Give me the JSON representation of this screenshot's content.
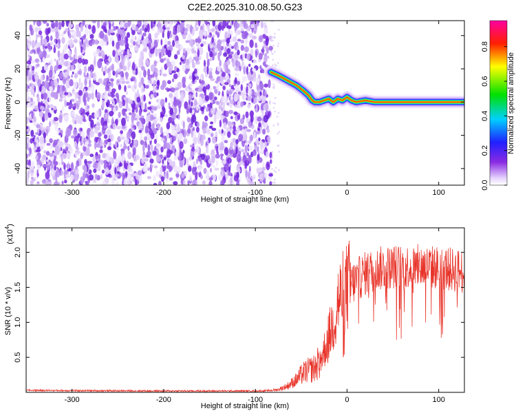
{
  "title": "C2E2.2025.310.08.50.G23",
  "colors": {
    "snr_line": "#e8342a",
    "frame": "#000000",
    "noise_light": "#d9c4f5",
    "noise_dark": "#7a2be0"
  },
  "chart_data": [
    {
      "type": "heatmap",
      "xlabel": "Height of straight line (km)",
      "ylabel": "Frequency (Hz)",
      "xlim": [
        -350,
        128
      ],
      "ylim": [
        -50,
        49
      ],
      "xticks": [
        -300,
        -200,
        -100,
        0,
        100
      ],
      "yticks": [
        -40,
        -20,
        0,
        20,
        40
      ],
      "colorbar": {
        "label": "Normalized spectral amplitude",
        "range": [
          0,
          0.95
        ],
        "ticks": [
          0.0,
          0.2,
          0.4,
          0.6,
          0.8
        ],
        "colormap": "rainbow: purple-blue-cyan-green-yellow-red-magenta"
      },
      "noise_region_x": [
        -350,
        -83
      ],
      "signal_trace": {
        "x": [
          -83,
          -75,
          -65,
          -55,
          -48,
          -42,
          -38,
          -35,
          -30,
          -25,
          -20,
          -15,
          -10,
          -5,
          0,
          5,
          10,
          20,
          30,
          40,
          60,
          80,
          100,
          128
        ],
        "freq": [
          18,
          16,
          13,
          10,
          7,
          4,
          1,
          0,
          0,
          1,
          2,
          0,
          2,
          1,
          3,
          1,
          0,
          1,
          0,
          0,
          0,
          0,
          0,
          0
        ]
      }
    },
    {
      "type": "line",
      "xlabel": "Height of straight line (km)",
      "ylabel": "SNR (10 * v/v)",
      "y_multiplier_label": "(x10",
      "y_multiplier_exp": "4",
      "xlim": [
        -350,
        128
      ],
      "ylim": [
        0,
        23500
      ],
      "xticks": [
        -300,
        -200,
        -100,
        0,
        100
      ],
      "yticks": [
        5000,
        10000,
        15000,
        20000
      ],
      "ytick_labels": [
        "0.5",
        "1.0",
        "1.5",
        "2.0"
      ],
      "series": [
        {
          "x": [
            -350,
            -300,
            -200,
            -100,
            -85,
            -75,
            -65,
            -55,
            -50,
            -45,
            -40,
            -35,
            -30,
            -25,
            -20,
            -15,
            -10,
            -5,
            0,
            10,
            20,
            30,
            40,
            60,
            80,
            100,
            110,
            120,
            128
          ],
          "values": [
            300,
            250,
            200,
            200,
            250,
            400,
            900,
            1800,
            2500,
            3000,
            3200,
            3500,
            4500,
            6000,
            8000,
            10000,
            13000,
            14000,
            15000,
            16000,
            17000,
            17500,
            17800,
            18000,
            18000,
            17800,
            17600,
            17400,
            17200
          ]
        }
      ]
    }
  ]
}
